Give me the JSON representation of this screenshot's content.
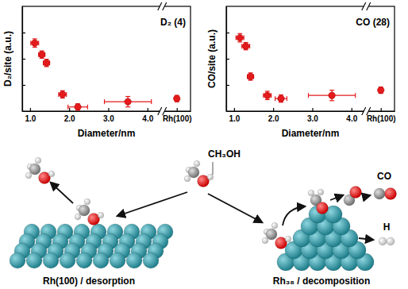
{
  "chart_data": [
    {
      "type": "scatter",
      "panel_label": "D₂ (4)",
      "x_label": "Diameter/nm",
      "y_label": "D₂/site (a.u.)",
      "x": [
        1.12,
        1.3,
        1.42,
        1.83,
        2.22,
        3.5,
        4.75
      ],
      "values": [
        6.5,
        5.4,
        4.6,
        1.6,
        0.4,
        0.9,
        1.2
      ],
      "xerr": [
        0.1,
        0.08,
        0.08,
        0.1,
        0.25,
        0.6,
        0
      ],
      "yerr": [
        0.4,
        0.35,
        0.35,
        0.35,
        0.3,
        0.5,
        0.3
      ],
      "color": "#e41a1c",
      "marker": "circle",
      "xlim": [
        0.8,
        5.1
      ],
      "xticks": [
        {
          "value": 1,
          "label": "1.0"
        },
        {
          "value": 2,
          "label": "2.0"
        },
        {
          "value": 3,
          "label": "3.0"
        },
        {
          "value": 4,
          "label": "4.0"
        },
        {
          "value": 4.75,
          "label": "Rh(100)"
        }
      ],
      "ylim": [
        0,
        10
      ],
      "yticks": [
        2.5,
        5,
        7.5
      ],
      "tick_labels": "x"
    },
    {
      "type": "scatter",
      "panel_label": "CO (28)",
      "x_label": "Diameter/nm",
      "y_label": "CO/site (a.u.)",
      "x": [
        1.15,
        1.3,
        1.42,
        1.85,
        2.2,
        3.5,
        4.75
      ],
      "values": [
        7.0,
        6.2,
        3.3,
        1.5,
        1.2,
        1.5,
        2.0
      ],
      "xerr": [
        0.1,
        0.1,
        0.08,
        0.1,
        0.15,
        0.6,
        0
      ],
      "yerr": [
        0.4,
        0.35,
        0.35,
        0.4,
        0.35,
        0.5,
        0.3
      ],
      "color": "#e41a1c",
      "marker": "circle",
      "xlim": [
        0.8,
        5.1
      ],
      "xticks": [
        {
          "value": 1,
          "label": "1.0"
        },
        {
          "value": 2,
          "label": "2.0"
        },
        {
          "value": 3,
          "label": "3.0"
        },
        {
          "value": 4,
          "label": "4.0"
        },
        {
          "value": 4.75,
          "label": "Rh(100)"
        }
      ],
      "ylim": [
        0,
        10
      ],
      "yticks": [
        2.5,
        5,
        7.5
      ],
      "tick_labels": "x"
    }
  ],
  "diagram": {
    "molecule_label": "CH₃OH",
    "left_label": "Rh(100) / desorption",
    "right_label": "Rh₃₈ / decomposition",
    "products": [
      "CO",
      "H"
    ]
  }
}
